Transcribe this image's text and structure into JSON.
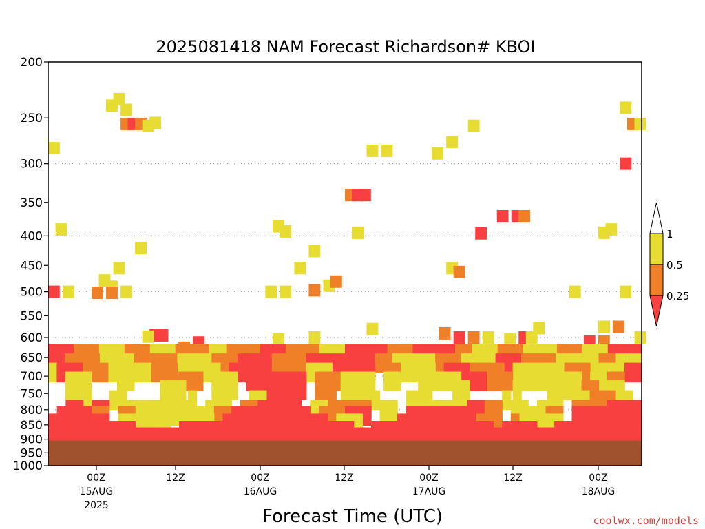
{
  "chart_data": {
    "type": "heatmap",
    "title": "2025081418 NAM Forecast Richardson# KBOI",
    "xlabel": "Forecast Time (UTC)",
    "credit": "coolwx.com/models",
    "y_scale": "log-pressure",
    "y_inverted": true,
    "ylim": [
      200,
      1000
    ],
    "xlim_hours": [
      -6,
      63
    ],
    "y_ticks": [
      200,
      250,
      300,
      350,
      400,
      450,
      500,
      550,
      600,
      650,
      700,
      750,
      800,
      850,
      900,
      950,
      1000
    ],
    "y_grid": [
      300,
      400,
      500,
      600,
      700,
      800,
      900,
      1000
    ],
    "x_ticks": [
      {
        "h": 0,
        "label": "00Z",
        "date": "15AUG",
        "year": "2025"
      },
      {
        "h": 12,
        "label": "12Z",
        "date": "",
        "year": ""
      },
      {
        "h": 24,
        "label": "00Z",
        "date": "16AUG",
        "year": ""
      },
      {
        "h": 36,
        "label": "12Z",
        "date": "",
        "year": ""
      },
      {
        "h": 48,
        "label": "00Z",
        "date": "17AUG",
        "year": ""
      },
      {
        "h": 60,
        "label": "12Z",
        "date": "",
        "year": ""
      },
      {
        "h": 72,
        "label": "00Z",
        "date": "18AUG",
        "year": ""
      }
    ],
    "legend": {
      "placement": "right",
      "levels": [
        "1",
        "0.5",
        "0.25"
      ],
      "colors": {
        "lt_0_25": "#f84040",
        "c_0_25_0_5": "#f08028",
        "c_0_5_1": "#e6dc32",
        "gt_1": "#ffffff"
      }
    },
    "ground": {
      "top_hpa": 905,
      "color": "#a0522d"
    },
    "cells": [
      {
        "t": -6,
        "p": 282,
        "c": "y"
      },
      {
        "t": -5,
        "p": 390,
        "c": "y"
      },
      {
        "t": 2,
        "p": 238,
        "c": "y"
      },
      {
        "t": 3,
        "p": 232,
        "c": "y"
      },
      {
        "t": 4,
        "p": 242,
        "c": "y"
      },
      {
        "t": 4,
        "p": 256,
        "c": "o"
      },
      {
        "t": 5,
        "p": 256,
        "c": "r"
      },
      {
        "t": 6,
        "p": 256,
        "c": "o"
      },
      {
        "t": 7,
        "p": 258,
        "c": "y"
      },
      {
        "t": 8,
        "p": 255,
        "c": "y"
      },
      {
        "t": 6,
        "p": 420,
        "c": "y"
      },
      {
        "t": 3,
        "p": 455,
        "c": "y"
      },
      {
        "t": 1,
        "p": 478,
        "c": "y"
      },
      {
        "t": 2,
        "p": 490,
        "c": "y"
      },
      {
        "t": 0,
        "p": 502,
        "c": "o"
      },
      {
        "t": 2,
        "p": 502,
        "c": "o"
      },
      {
        "t": 4,
        "p": 500,
        "c": "y"
      },
      {
        "t": -6,
        "p": 500,
        "c": "r"
      },
      {
        "t": -4,
        "p": 500,
        "c": "y"
      },
      {
        "t": 25,
        "p": 385,
        "c": "y"
      },
      {
        "t": 26,
        "p": 393,
        "c": "y"
      },
      {
        "t": 24,
        "p": 500,
        "c": "y"
      },
      {
        "t": 26,
        "p": 500,
        "c": "y"
      },
      {
        "t": 28,
        "p": 455,
        "c": "y"
      },
      {
        "t": 30,
        "p": 425,
        "c": "y"
      },
      {
        "t": 30,
        "p": 497,
        "c": "o"
      },
      {
        "t": 32,
        "p": 488,
        "c": "y"
      },
      {
        "t": 33,
        "p": 480,
        "c": "o"
      },
      {
        "t": 35,
        "p": 340,
        "c": "o"
      },
      {
        "t": 36,
        "p": 340,
        "c": "r"
      },
      {
        "t": 37,
        "p": 340,
        "c": "r"
      },
      {
        "t": 36,
        "p": 395,
        "c": "y"
      },
      {
        "t": 38,
        "p": 285,
        "c": "y"
      },
      {
        "t": 40,
        "p": 285,
        "c": "y"
      },
      {
        "t": 47,
        "p": 288,
        "c": "y"
      },
      {
        "t": 49,
        "p": 275,
        "c": "y"
      },
      {
        "t": 52,
        "p": 258,
        "c": "y"
      },
      {
        "t": 53,
        "p": 396,
        "c": "r"
      },
      {
        "t": 56,
        "p": 370,
        "c": "r"
      },
      {
        "t": 58,
        "p": 370,
        "c": "r"
      },
      {
        "t": 59,
        "p": 370,
        "c": "o"
      },
      {
        "t": 49,
        "p": 455,
        "c": "y"
      },
      {
        "t": 50,
        "p": 462,
        "c": "o"
      },
      {
        "t": 38,
        "p": 580,
        "c": "y"
      },
      {
        "t": 70,
        "p": 395,
        "c": "y"
      },
      {
        "t": 71,
        "p": 390,
        "c": "y"
      },
      {
        "t": 73,
        "p": 240,
        "c": "y"
      },
      {
        "t": 74,
        "p": 256,
        "c": "o"
      },
      {
        "t": 75,
        "p": 256,
        "c": "y"
      },
      {
        "t": 73,
        "p": 300,
        "c": "r"
      },
      {
        "t": 70,
        "p": 575,
        "c": "o"
      },
      {
        "t": 72,
        "p": 575,
        "c": "o"
      },
      {
        "t": 70,
        "p": 575,
        "c": "y"
      },
      {
        "t": 73,
        "p": 500,
        "c": "y"
      },
      {
        "t": 66,
        "p": 500,
        "c": "y"
      },
      {
        "t": 61,
        "p": 578,
        "c": "y"
      },
      {
        "t": 8,
        "p": 595,
        "c": "r"
      },
      {
        "t": 9,
        "p": 595,
        "c": "r"
      },
      {
        "t": 7,
        "p": 598,
        "c": "y"
      },
      {
        "t": 14,
        "p": 612,
        "c": "r"
      },
      {
        "t": 12,
        "p": 625,
        "c": "o"
      },
      {
        "t": 25,
        "p": 605,
        "c": "y"
      },
      {
        "t": 30,
        "p": 600,
        "c": "y"
      },
      {
        "t": 48,
        "p": 590,
        "c": "o"
      },
      {
        "t": 50,
        "p": 600,
        "c": "r"
      },
      {
        "t": 52,
        "p": 600,
        "c": "o"
      },
      {
        "t": 54,
        "p": 600,
        "c": "y"
      },
      {
        "t": 57,
        "p": 605,
        "c": "y"
      },
      {
        "t": 59,
        "p": 600,
        "c": "r"
      },
      {
        "t": 60,
        "p": 600,
        "c": "y"
      },
      {
        "t": 68,
        "p": 610,
        "c": "r"
      },
      {
        "t": 70,
        "p": 610,
        "c": "o"
      },
      {
        "t": 75,
        "p": 600,
        "c": "y"
      }
    ],
    "band_rows": [
      {
        "p": 640,
        "pattern": "rrroooyyyoooyyyooooyyoooorrrooooyyyrrrrrooorrrrrooyyyoooyyyyoooyyyrrrr"
      },
      {
        "p": 665,
        "pattern": "rrooooyyyyoooooyyyyooorrrroooorrrrrrrrooyyyyyoooyyyyrrrooooyyyyyooyyy"
      },
      {
        "p": 690,
        "pattern": "yrrroooyy yyooo yyyy rrrrrooooyyy rrrr ooyyyy rrroooo yyyyy ooo yy rr"
      },
      {
        "p": 715,
        "pattern": "  yyy   yy     ooo yyy rrrrrrr oooyyyy yy  yyyyy rrooo yyy yyy yyoo  "
      },
      {
        "p": 740,
        "pattern": "  yy         yyy   yyy   rrrrr oo yyy          yy     y   yyy oo yy  "
      },
      {
        "p": 770,
        "pattern": "    y  yy       y   y  yy      oo yyyy   yyy   y    y     y yy oo y "
      },
      {
        "p": 800,
        "pattern": "  rr rr yyyyyyyyy yyy oorrrrr yy oooo yy   yyyy rroo yy yyy ooo rrrr"
      },
      {
        "p": 820,
        "pattern": " rrrroo ooyyyyy yyyoorrrrrrrrr oo rrr yy rrrrrrrrroo yyy oo rrrrrrrr"
      },
      {
        "p": 845,
        "pattern": "rrrrrrr yyyyy  yyyy rrrrrrrrr rr yyy    rrrrrrrrrooo oy yyy rrrrrrrr"
      },
      {
        "p": 870,
        "pattern": "rrrrrrrrrr  yy rrrrrrrrrrrrrrrr rrr  rrrrrrrrrrrrrr rrrr  rrrrrrrrrr"
      },
      {
        "p": 893,
        "pattern": "rrrrrrrrrrrrrrrrrrrrrrrrrrrrrrrrrrrrrrrrrrrrrrrrrrrrrrrrrrrrrrrrrrrr"
      }
    ]
  }
}
